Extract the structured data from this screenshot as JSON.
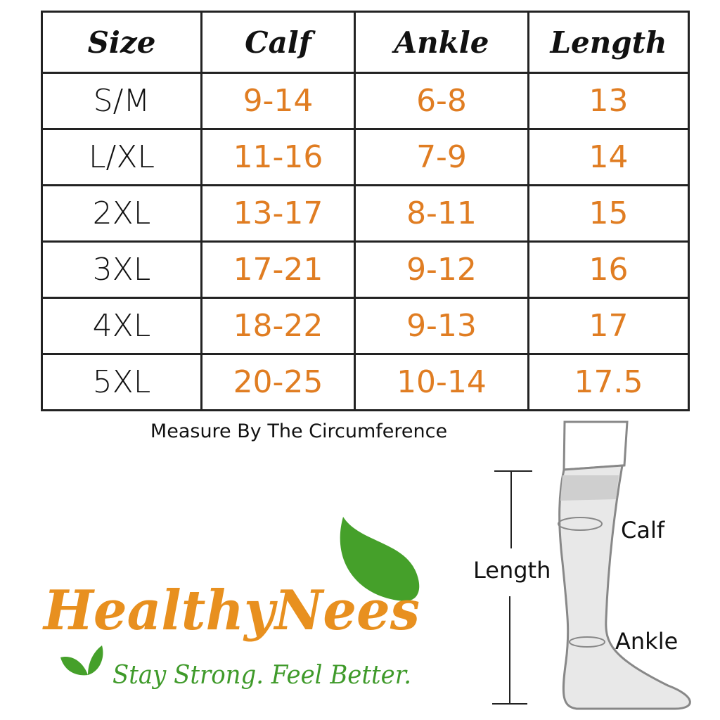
{
  "table": {
    "headers": [
      "Size",
      "Calf",
      "Ankle",
      "Length"
    ],
    "rows": [
      [
        "S/M",
        "9-14",
        "6-8",
        "13"
      ],
      [
        "L/XL",
        "11-16",
        "7-9",
        "14"
      ],
      [
        "2XL",
        "13-17",
        "8-11",
        "15"
      ],
      [
        "3XL",
        "17-21",
        "9-12",
        "16"
      ],
      [
        "4XL",
        "18-22",
        "9-13",
        "17"
      ],
      [
        "5XL",
        "20-25",
        "10-14",
        "17.5"
      ]
    ]
  },
  "note": "Measure By The Circumference",
  "diagram": {
    "length_label": "Length",
    "calf_label": "Calf",
    "ankle_label": "Ankle"
  },
  "logo": {
    "brand": "HealthyNees",
    "tagline": "Stay Strong. Feel Better."
  },
  "colors": {
    "value": "#e07d22",
    "brand": "#e8901f",
    "leaf": "#3f9a2a"
  }
}
